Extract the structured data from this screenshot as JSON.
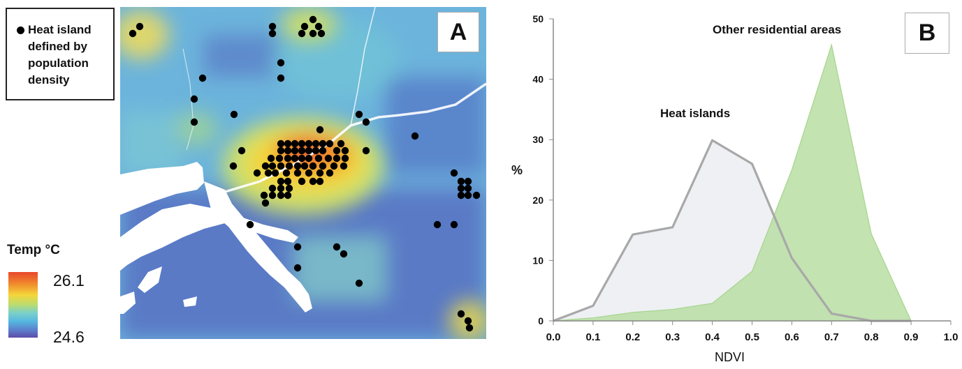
{
  "panel_a": {
    "label": "A",
    "legend_text": "Heat island defined by population density",
    "colorbar": {
      "title": "Temp °C",
      "max_label": "26.1",
      "min_label": "24.6"
    }
  },
  "panel_b": {
    "label": "B"
  },
  "chart_data": {
    "type": "area",
    "xlabel": "NDVI",
    "ylabel": "%",
    "xlim": [
      0.0,
      1.0
    ],
    "ylim": [
      0,
      50
    ],
    "x_ticks": [
      "0.0",
      "0.1",
      "0.2",
      "0.3",
      "0.4",
      "0.5",
      "0.6",
      "0.7",
      "0.8",
      "0.9",
      "1.0"
    ],
    "y_ticks": [
      "0",
      "10",
      "20",
      "30",
      "40",
      "50"
    ],
    "grid": false,
    "series": [
      {
        "name": "Heat islands",
        "style": "line",
        "color": "#a8a8a8",
        "fill": "#eef0f3",
        "x": [
          0.0,
          0.1,
          0.2,
          0.3,
          0.4,
          0.5,
          0.6,
          0.7,
          0.8,
          0.9
        ],
        "y": [
          0,
          2.5,
          14.3,
          15.5,
          29.9,
          26.0,
          10.4,
          1.2,
          0,
          0
        ]
      },
      {
        "name": "Other residential areas",
        "style": "area",
        "color": "#a7d58d",
        "fill": "#b8dea3",
        "x": [
          0.0,
          0.1,
          0.2,
          0.3,
          0.4,
          0.5,
          0.6,
          0.7,
          0.8,
          0.9
        ],
        "y": [
          0,
          0.5,
          1.4,
          1.9,
          2.9,
          8.2,
          25.0,
          45.7,
          14.4,
          0
        ]
      }
    ]
  }
}
